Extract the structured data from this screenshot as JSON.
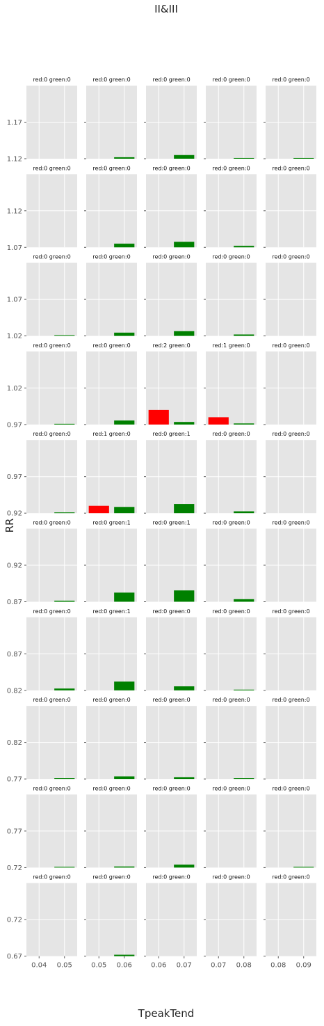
{
  "figure": {
    "title": "II&III",
    "xlabel": "TpeakTend",
    "ylabel": "RR"
  },
  "colors": {
    "red": "#ff0000",
    "green": "#008000",
    "panel_bg": "#e5e5e5",
    "grid": "#ffffff"
  },
  "chart_data": {
    "type": "bar",
    "layout": "small-multiples grid, 10 rows x 5 columns, shared y within row, shared x within column",
    "grid": true,
    "rows": [
      {
        "ylim": [
          1.12,
          1.22
        ],
        "yticks": [
          "1.17",
          "1.12"
        ]
      },
      {
        "ylim": [
          1.07,
          1.17
        ],
        "yticks": [
          "1.12",
          "1.07"
        ]
      },
      {
        "ylim": [
          1.02,
          1.12
        ],
        "yticks": [
          "1.07",
          "1.02"
        ]
      },
      {
        "ylim": [
          0.97,
          1.07
        ],
        "yticks": [
          "1.02",
          "0.97"
        ]
      },
      {
        "ylim": [
          0.92,
          1.02
        ],
        "yticks": [
          "0.97",
          "0.92"
        ]
      },
      {
        "ylim": [
          0.87,
          0.97
        ],
        "yticks": [
          "0.92",
          "0.87"
        ]
      },
      {
        "ylim": [
          0.82,
          0.92
        ],
        "yticks": [
          "0.87",
          "0.82"
        ]
      },
      {
        "ylim": [
          0.77,
          0.87
        ],
        "yticks": [
          "0.82",
          "0.77"
        ]
      },
      {
        "ylim": [
          0.72,
          0.82
        ],
        "yticks": [
          "0.77",
          "0.72"
        ]
      },
      {
        "ylim": [
          0.67,
          0.77
        ],
        "yticks": [
          "0.72",
          "0.67"
        ]
      }
    ],
    "columns": [
      {
        "xlim": [
          0.035,
          0.055
        ],
        "xticks": [
          "0.04",
          "0.05"
        ]
      },
      {
        "xlim": [
          0.045,
          0.065
        ],
        "xticks": [
          "0.05",
          "0.06"
        ]
      },
      {
        "xlim": [
          0.055,
          0.075
        ],
        "xticks": [
          "0.06",
          "0.07"
        ]
      },
      {
        "xlim": [
          0.065,
          0.085
        ],
        "xticks": [
          "0.07",
          "0.08"
        ]
      },
      {
        "xlim": [
          0.075,
          0.095
        ],
        "xticks": [
          "0.08",
          "0.09"
        ]
      }
    ],
    "bar_width": 0.008,
    "panels": [
      [
        {
          "title": "red:0 green:0",
          "red": 0,
          "green": 0
        },
        {
          "title": "red:0 green:0",
          "red": 0,
          "green": 0.002
        },
        {
          "title": "red:0 green:0",
          "red": 0,
          "green": 0.005
        },
        {
          "title": "red:0 green:0",
          "red": 0,
          "green": 0.001
        },
        {
          "title": "red:0 green:0",
          "red": 0,
          "green": 0.001
        }
      ],
      [
        {
          "title": "red:0 green:0",
          "red": 0,
          "green": 0
        },
        {
          "title": "red:0 green:0",
          "red": 0,
          "green": 0.005
        },
        {
          "title": "red:0 green:0",
          "red": 0,
          "green": 0.0075
        },
        {
          "title": "red:0 green:0",
          "red": 0,
          "green": 0.002
        },
        {
          "title": "red:0 green:0",
          "red": 0,
          "green": 0
        }
      ],
      [
        {
          "title": "red:0 green:0",
          "red": 0,
          "green": 0.001
        },
        {
          "title": "red:0 green:0",
          "red": 0,
          "green": 0.0045
        },
        {
          "title": "red:0 green:0",
          "red": 0,
          "green": 0.0065
        },
        {
          "title": "red:0 green:0",
          "red": 0,
          "green": 0.002
        },
        {
          "title": "red:0 green:0",
          "red": 0,
          "green": 0
        }
      ],
      [
        {
          "title": "red:0 green:0",
          "red": 0,
          "green": 0.001
        },
        {
          "title": "red:0 green:0",
          "red": 0,
          "green": 0.0055
        },
        {
          "title": "red:2 green:0",
          "red": 0.02,
          "green": 0.0035
        },
        {
          "title": "red:1 green:0",
          "red": 0.01,
          "green": 0.0015
        },
        {
          "title": "red:0 green:0",
          "red": 0,
          "green": 0
        }
      ],
      [
        {
          "title": "red:0 green:0",
          "red": 0,
          "green": 0.001
        },
        {
          "title": "red:1 green:0",
          "red": 0.01,
          "green": 0.0085
        },
        {
          "title": "red:0 green:1",
          "red": 0,
          "green": 0.0125
        },
        {
          "title": "red:0 green:0",
          "red": 0,
          "green": 0.0025
        },
        {
          "title": "red:0 green:0",
          "red": 0,
          "green": 0
        }
      ],
      [
        {
          "title": "red:0 green:0",
          "red": 0,
          "green": 0.0015
        },
        {
          "title": "red:0 green:1",
          "red": 0,
          "green": 0.0125
        },
        {
          "title": "red:0 green:1",
          "red": 0,
          "green": 0.0155
        },
        {
          "title": "red:0 green:0",
          "red": 0,
          "green": 0.0035
        },
        {
          "title": "red:0 green:0",
          "red": 0,
          "green": 0
        }
      ],
      [
        {
          "title": "red:0 green:0",
          "red": 0,
          "green": 0.0025
        },
        {
          "title": "red:0 green:1",
          "red": 0,
          "green": 0.012
        },
        {
          "title": "red:0 green:0",
          "red": 0,
          "green": 0.0055
        },
        {
          "title": "red:0 green:0",
          "red": 0,
          "green": 0.001
        },
        {
          "title": "red:0 green:0",
          "red": 0,
          "green": 0
        }
      ],
      [
        {
          "title": "red:0 green:0",
          "red": 0,
          "green": 0.001
        },
        {
          "title": "red:0 green:0",
          "red": 0,
          "green": 0.0035
        },
        {
          "title": "red:0 green:0",
          "red": 0,
          "green": 0.0025
        },
        {
          "title": "red:0 green:0",
          "red": 0,
          "green": 0.001
        },
        {
          "title": "red:0 green:0",
          "red": 0,
          "green": 0
        }
      ],
      [
        {
          "title": "red:0 green:0",
          "red": 0,
          "green": 0.001
        },
        {
          "title": "red:0 green:0",
          "red": 0,
          "green": 0.0015
        },
        {
          "title": "red:0 green:0",
          "red": 0,
          "green": 0.004
        },
        {
          "title": "red:0 green:0",
          "red": 0,
          "green": 0
        },
        {
          "title": "red:0 green:0",
          "red": 0,
          "green": 0.001
        }
      ],
      [
        {
          "title": "red:0 green:0",
          "red": 0,
          "green": 0
        },
        {
          "title": "red:0 green:0",
          "red": 0,
          "green": 0.002
        },
        {
          "title": "red:0 green:0",
          "red": 0,
          "green": 0
        },
        {
          "title": "red:0 green:0",
          "red": 0,
          "green": 0
        },
        {
          "title": "red:0 green:0",
          "red": 0,
          "green": 0
        }
      ]
    ]
  }
}
